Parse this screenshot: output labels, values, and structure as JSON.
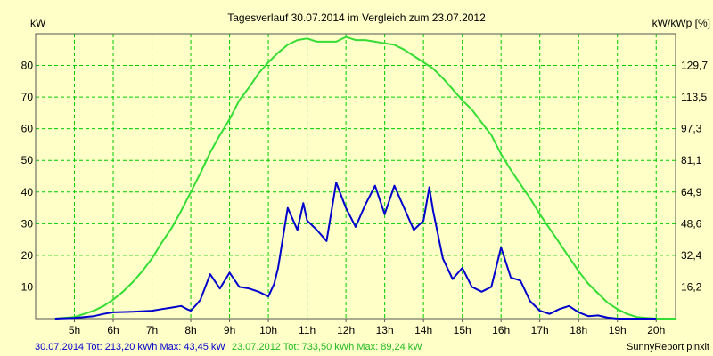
{
  "chart_data": {
    "type": "line",
    "title": "Tagesverlauf 30.07.2014 im Vergleich zum 23.07.2012",
    "ylabel_left": "kW",
    "ylabel_right": "kW/kWp [%]",
    "ylim": [
      0,
      90
    ],
    "xlim": [
      4.0,
      20.5
    ],
    "y_ticks": [
      10,
      20,
      30,
      40,
      50,
      60,
      70,
      80
    ],
    "right_ticks": [
      "16,2",
      "32,4",
      "48,6",
      "64,9",
      "81,1",
      "97,3",
      "113,5",
      "129,7"
    ],
    "x_ticks": [
      {
        "x": 5,
        "label": "5h"
      },
      {
        "x": 6,
        "label": "6h"
      },
      {
        "x": 7,
        "label": "7h"
      },
      {
        "x": 8,
        "label": "8h"
      },
      {
        "x": 9,
        "label": "9h"
      },
      {
        "x": 10,
        "label": "10h"
      },
      {
        "x": 11,
        "label": "11h"
      },
      {
        "x": 12,
        "label": "12h"
      },
      {
        "x": 13,
        "label": "13h"
      },
      {
        "x": 14,
        "label": "14h"
      },
      {
        "x": 15,
        "label": "15h"
      },
      {
        "x": 16,
        "label": "16h"
      },
      {
        "x": 17,
        "label": "17h"
      },
      {
        "x": 18,
        "label": "18h"
      },
      {
        "x": 19,
        "label": "19h"
      },
      {
        "x": 20,
        "label": "20h"
      }
    ],
    "grid": true,
    "colors": {
      "background": "#FFFFC8",
      "grid": "#00CC00",
      "series_2014": "#0000CC",
      "series_2012": "#33DD33"
    },
    "series": [
      {
        "name": "30.07.2014",
        "color": "#0000CC",
        "x": [
          4.5,
          5.0,
          5.5,
          5.75,
          6.0,
          6.5,
          7.0,
          7.25,
          7.5,
          7.75,
          7.9,
          8.0,
          8.15,
          8.25,
          8.5,
          8.75,
          9.0,
          9.25,
          9.5,
          9.75,
          10.0,
          10.15,
          10.25,
          10.5,
          10.75,
          10.9,
          11.0,
          11.25,
          11.5,
          11.75,
          12.0,
          12.25,
          12.5,
          12.75,
          13.0,
          13.25,
          13.5,
          13.75,
          14.0,
          14.15,
          14.25,
          14.5,
          14.75,
          15.0,
          15.25,
          15.5,
          15.75,
          16.0,
          16.25,
          16.5,
          16.75,
          17.0,
          17.25,
          17.5,
          17.75,
          18.0,
          18.25,
          18.5,
          18.75,
          19.0,
          19.25,
          19.5,
          20.0
        ],
        "y": [
          0,
          0.2,
          0.8,
          1.5,
          2.0,
          2.2,
          2.5,
          3.0,
          3.5,
          4.0,
          3.0,
          2.5,
          4.5,
          6.0,
          14.0,
          9.5,
          14.5,
          10.0,
          9.5,
          8.5,
          7.0,
          11.0,
          16.0,
          35.0,
          28.0,
          36.5,
          31.0,
          28.0,
          24.5,
          43.0,
          35.0,
          29.0,
          36.0,
          42.0,
          33.0,
          42.0,
          35.0,
          28.0,
          31.0,
          41.5,
          34.0,
          19.0,
          12.5,
          16.0,
          10.0,
          8.5,
          10.0,
          22.5,
          13.0,
          12.0,
          5.5,
          2.5,
          1.5,
          3.0,
          4.0,
          2.0,
          0.8,
          1.0,
          0.3,
          0,
          0,
          0,
          0
        ]
      },
      {
        "name": "23.07.2012",
        "color": "#33DD33",
        "x": [
          4.5,
          5.0,
          5.25,
          5.5,
          5.75,
          6.0,
          6.25,
          6.5,
          6.75,
          7.0,
          7.25,
          7.5,
          7.75,
          8.0,
          8.25,
          8.5,
          8.75,
          9.0,
          9.25,
          9.5,
          9.75,
          10.0,
          10.25,
          10.5,
          10.75,
          11.0,
          11.25,
          11.5,
          11.75,
          12.0,
          12.25,
          12.5,
          12.75,
          13.0,
          13.25,
          13.5,
          13.75,
          14.0,
          14.25,
          14.5,
          14.75,
          15.0,
          15.25,
          15.5,
          15.75,
          16.0,
          16.25,
          16.5,
          16.75,
          17.0,
          17.25,
          17.5,
          17.75,
          18.0,
          18.25,
          18.5,
          18.75,
          19.0,
          19.25,
          19.5,
          19.75,
          20.0,
          20.5
        ],
        "y": [
          0,
          0.5,
          1.5,
          2.5,
          4.0,
          6.0,
          8.5,
          11.5,
          15.0,
          19.0,
          24.0,
          28.5,
          34.0,
          40.0,
          46.0,
          52.5,
          58.0,
          63.0,
          69.0,
          73.0,
          77.5,
          81.0,
          84.0,
          86.5,
          88.0,
          88.5,
          87.5,
          87.5,
          87.5,
          89.0,
          88.0,
          88.0,
          87.5,
          87.0,
          86.5,
          85.0,
          83.0,
          81.0,
          79.0,
          76.0,
          72.5,
          69.0,
          66.0,
          62.0,
          58.0,
          52.0,
          47.0,
          42.5,
          38.0,
          33.0,
          28.5,
          24.0,
          19.5,
          15.0,
          11.0,
          8.0,
          5.0,
          3.0,
          1.5,
          0.5,
          0.2,
          0,
          0
        ]
      }
    ],
    "footer": {
      "blue_text": "30.07.2014 Tot: 213,20 kWh Max: 43,45 kW",
      "green_text": "23.07.2012 Tot: 733,50 kWh Max: 89,24 kW",
      "credit": "SunnyReport pinxit"
    }
  }
}
